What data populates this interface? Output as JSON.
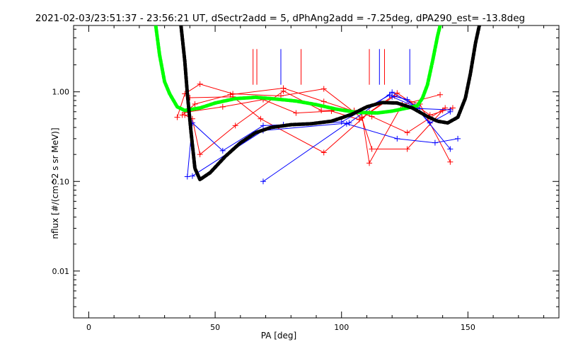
{
  "chart_data": {
    "type": "scatter",
    "title": "2021-02-03/23:51:37 - 23:56:21 UT, dSectr2add = 5, dPhAng2add = -7.25deg, dPA290_est= -13.8deg",
    "xlabel": "PA [deg]",
    "ylabel": "nflux [#/(cm^2 s sr MeV)]",
    "xlim": [
      -6,
      186
    ],
    "ylim": [
      0.003,
      5.5
    ],
    "yscale": "log",
    "grid": false,
    "xticks": [
      0,
      50,
      100,
      150
    ],
    "xtick_labels": [
      "0",
      "50",
      "100",
      "150"
    ],
    "xminor_step": 10,
    "yticks": [
      0.01,
      0.1,
      1.0
    ],
    "ytick_labels": [
      "0.01",
      "0.10",
      "1.00"
    ],
    "colors": {
      "red": "#ff0000",
      "blue": "#0000ff",
      "green": "#00ff00",
      "black": "#000000"
    },
    "vlines": [
      {
        "color": "#ff0000",
        "x": [
          65,
          66.5,
          84,
          111,
          117
        ]
      },
      {
        "color": "#0000ff",
        "x": [
          76,
          115,
          127
        ]
      }
    ],
    "series": [
      {
        "color": "#ff0000",
        "marker": "plus",
        "points": [
          [
            35,
            0.52
          ],
          [
            38,
            0.95
          ],
          [
            44,
            1.22
          ],
          [
            57,
            0.95
          ],
          [
            76,
            0.9
          ],
          [
            93,
            1.08
          ],
          [
            108,
            0.51
          ],
          [
            112,
            0.23
          ],
          [
            126,
            0.23
          ],
          [
            140,
            0.62
          ]
        ]
      },
      {
        "color": "#ff0000",
        "marker": "plus",
        "points": [
          [
            38,
            0.55
          ],
          [
            41,
            0.5
          ],
          [
            44,
            0.2
          ],
          [
            58,
            0.42
          ],
          [
            77,
            1.02
          ],
          [
            92,
            0.62
          ],
          [
            105,
            0.62
          ],
          [
            112,
            0.53
          ],
          [
            126,
            0.35
          ],
          [
            141,
            0.66
          ]
        ]
      },
      {
        "color": "#ff0000",
        "marker": "plus",
        "points": [
          [
            37,
            0.55
          ],
          [
            42,
            0.73
          ],
          [
            56,
            0.93
          ],
          [
            77,
            1.1
          ],
          [
            93,
            0.78
          ],
          [
            108,
            0.57
          ],
          [
            111,
            0.16
          ],
          [
            124,
            0.72
          ],
          [
            139,
            0.93
          ]
        ]
      },
      {
        "color": "#ff0000",
        "marker": "plus",
        "points": [
          [
            40,
            0.86
          ],
          [
            57,
            0.88
          ],
          [
            68,
            0.5
          ],
          [
            93,
            0.21
          ],
          [
            111,
            0.59
          ],
          [
            122,
            0.97
          ],
          [
            135,
            0.55
          ],
          [
            144,
            0.66
          ]
        ]
      },
      {
        "color": "#ff0000",
        "marker": "plus",
        "points": [
          [
            38,
            0.59
          ],
          [
            53,
            0.68
          ],
          [
            69,
            0.82
          ],
          [
            82,
            0.58
          ],
          [
            96,
            0.61
          ],
          [
            107,
            0.49
          ],
          [
            121,
            0.9
          ],
          [
            131,
            0.73
          ],
          [
            143,
            0.165
          ]
        ]
      },
      {
        "color": "#0000ff",
        "marker": "plus",
        "points": [
          [
            39,
            0.113
          ],
          [
            41,
            0.45
          ],
          [
            53,
            0.22
          ],
          [
            69,
            0.42
          ],
          [
            77,
            0.43
          ],
          [
            100,
            0.46
          ],
          [
            119,
            0.92
          ],
          [
            126,
            0.82
          ],
          [
            135,
            0.45
          ],
          [
            143,
            0.6
          ]
        ]
      },
      {
        "color": "#0000ff",
        "marker": "plus",
        "points": [
          [
            41,
            0.115
          ],
          [
            69,
            0.37
          ],
          [
            103,
            0.45
          ],
          [
            120,
            0.99
          ],
          [
            129,
            0.7
          ],
          [
            143,
            0.23
          ]
        ]
      },
      {
        "color": "#0000ff",
        "marker": "plus",
        "points": [
          [
            69,
            0.1
          ],
          [
            102,
            0.44
          ],
          [
            122,
            0.3
          ],
          [
            137,
            0.27
          ],
          [
            146,
            0.3
          ]
        ]
      },
      {
        "color": "#0000ff",
        "marker": "plus",
        "points": [
          [
            120,
            0.88
          ],
          [
            131,
            0.65
          ],
          [
            143,
            0.63
          ]
        ]
      }
    ],
    "fits": [
      {
        "color": "#00ff00",
        "style": "thick-dotted",
        "points": [
          [
            26.5,
            5.5
          ],
          [
            28,
            2.6
          ],
          [
            30,
            1.3
          ],
          [
            32,
            0.95
          ],
          [
            35,
            0.68
          ],
          [
            38,
            0.62
          ],
          [
            44,
            0.66
          ],
          [
            50,
            0.75
          ],
          [
            58,
            0.84
          ],
          [
            66,
            0.87
          ],
          [
            74,
            0.83
          ],
          [
            82,
            0.79
          ],
          [
            90,
            0.72
          ],
          [
            98,
            0.64
          ],
          [
            106,
            0.59
          ],
          [
            114,
            0.58
          ],
          [
            120,
            0.61
          ],
          [
            126,
            0.66
          ],
          [
            130,
            0.7
          ],
          [
            132,
            0.85
          ],
          [
            134,
            1.2
          ],
          [
            136,
            2.2
          ],
          [
            138,
            4.2
          ],
          [
            139,
            5.5
          ]
        ]
      },
      {
        "color": "#000000",
        "style": "thick-dotted",
        "points": [
          [
            36.5,
            5.5
          ],
          [
            38,
            2.2
          ],
          [
            39,
            0.95
          ],
          [
            40.5,
            0.35
          ],
          [
            42,
            0.14
          ],
          [
            44,
            0.105
          ],
          [
            48,
            0.125
          ],
          [
            54,
            0.19
          ],
          [
            60,
            0.27
          ],
          [
            66,
            0.35
          ],
          [
            72,
            0.4
          ],
          [
            80,
            0.43
          ],
          [
            88,
            0.44
          ],
          [
            96,
            0.47
          ],
          [
            104,
            0.56
          ],
          [
            110,
            0.68
          ],
          [
            116,
            0.76
          ],
          [
            122,
            0.75
          ],
          [
            128,
            0.66
          ],
          [
            134,
            0.53
          ],
          [
            138,
            0.47
          ],
          [
            142,
            0.45
          ],
          [
            146,
            0.52
          ],
          [
            149,
            0.85
          ],
          [
            151,
            1.6
          ],
          [
            153,
            3.5
          ],
          [
            154.5,
            5.5
          ]
        ]
      }
    ]
  }
}
